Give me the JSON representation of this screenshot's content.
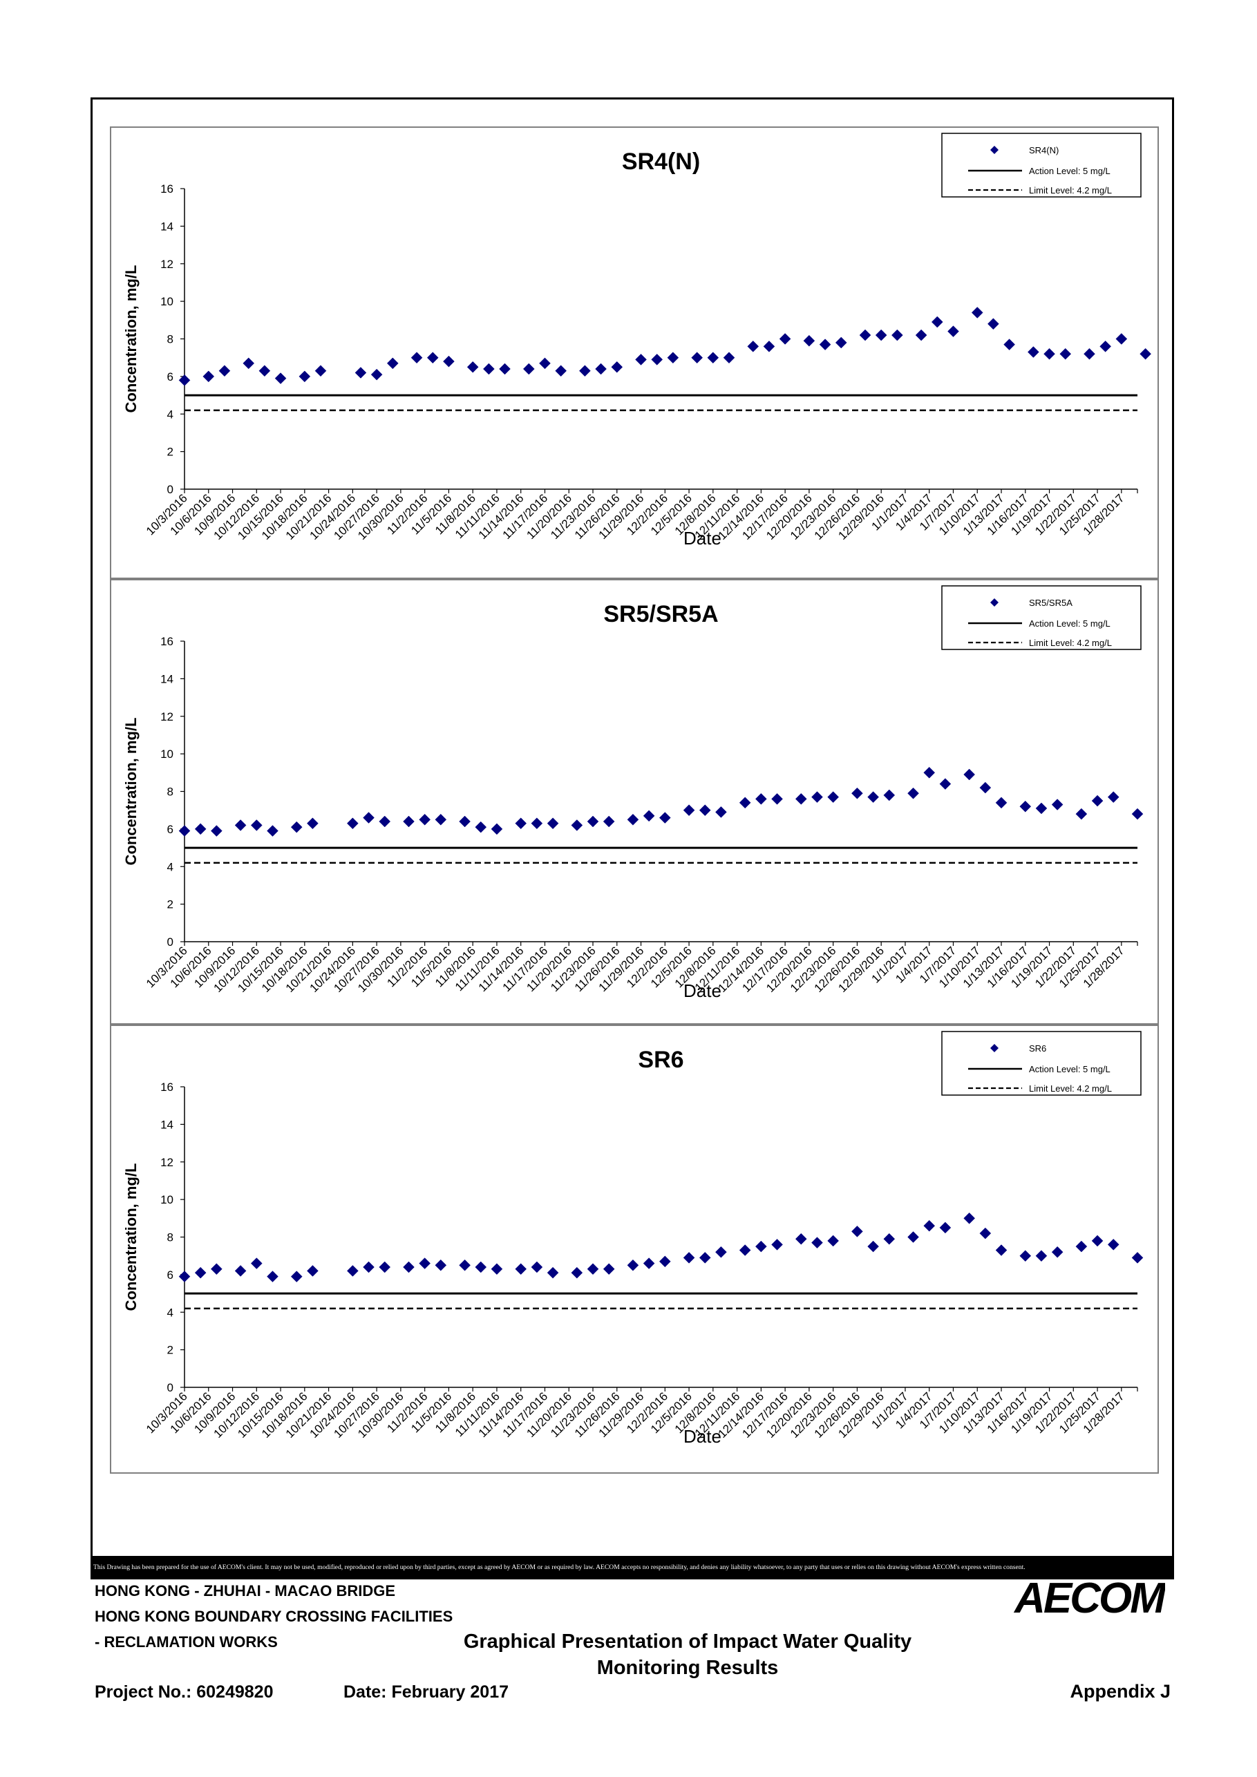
{
  "x_tick_labels": [
    "10/3/2016",
    "10/6/2016",
    "10/9/2016",
    "10/12/2016",
    "10/15/2016",
    "10/18/2016",
    "10/21/2016",
    "10/24/2016",
    "10/27/2016",
    "10/30/2016",
    "11/2/2016",
    "11/5/2016",
    "11/8/2016",
    "11/11/2016",
    "11/14/2016",
    "11/17/2016",
    "11/20/2016",
    "11/23/2016",
    "11/26/2016",
    "11/29/2016",
    "12/2/2016",
    "12/5/2016",
    "12/8/2016",
    "12/11/2016",
    "12/14/2016",
    "12/17/2016",
    "12/20/2016",
    "12/23/2016",
    "12/26/2016",
    "12/29/2016",
    "1/1/2017",
    "1/4/2017",
    "1/7/2017",
    "1/10/2017",
    "1/13/2017",
    "1/16/2017",
    "1/19/2017",
    "1/22/2017",
    "1/25/2017",
    "1/28/2017"
  ],
  "chart_data": [
    {
      "type": "scatter",
      "title": "SR4(N)",
      "xlabel": "Date",
      "ylabel": "Concentration, mg/L",
      "ylim": [
        0,
        16
      ],
      "y_ticks": [
        "0",
        "2",
        "4",
        "6",
        "8",
        "10",
        "12",
        "14",
        "16"
      ],
      "xlim": [
        "10/3/2016",
        "1/30/2017"
      ],
      "legend": {
        "position": "top-right",
        "entries": [
          "SR4(N)",
          "Action Level: 5 mg/L",
          "Limit Level: 4.2 mg/L"
        ]
      },
      "action_level": 5,
      "limit_level": 4.2,
      "series": [
        {
          "name": "SR4(N)",
          "color": "#00007f",
          "marker": "diamond",
          "points": [
            [
              "10/3/2016",
              5.8
            ],
            [
              "10/6/2016",
              6.0
            ],
            [
              "10/8/2016",
              6.3
            ],
            [
              "10/11/2016",
              6.7
            ],
            [
              "10/13/2016",
              6.3
            ],
            [
              "10/15/2016",
              5.9
            ],
            [
              "10/18/2016",
              6.0
            ],
            [
              "10/20/2016",
              6.3
            ],
            [
              "10/25/2016",
              6.2
            ],
            [
              "10/27/2016",
              6.1
            ],
            [
              "10/29/2016",
              6.7
            ],
            [
              "11/1/2016",
              7.0
            ],
            [
              "11/3/2016",
              7.0
            ],
            [
              "11/5/2016",
              6.8
            ],
            [
              "11/8/2016",
              6.5
            ],
            [
              "11/10/2016",
              6.4
            ],
            [
              "11/12/2016",
              6.4
            ],
            [
              "11/15/2016",
              6.4
            ],
            [
              "11/17/2016",
              6.7
            ],
            [
              "11/19/2016",
              6.3
            ],
            [
              "11/22/2016",
              6.3
            ],
            [
              "11/24/2016",
              6.4
            ],
            [
              "11/26/2016",
              6.5
            ],
            [
              "11/29/2016",
              6.9
            ],
            [
              "12/1/2016",
              6.9
            ],
            [
              "12/3/2016",
              7.0
            ],
            [
              "12/6/2016",
              7.0
            ],
            [
              "12/8/2016",
              7.0
            ],
            [
              "12/10/2016",
              7.0
            ],
            [
              "12/13/2016",
              7.6
            ],
            [
              "12/15/2016",
              7.6
            ],
            [
              "12/17/2016",
              8.0
            ],
            [
              "12/20/2016",
              7.9
            ],
            [
              "12/22/2016",
              7.7
            ],
            [
              "12/24/2016",
              7.8
            ],
            [
              "12/27/2016",
              8.2
            ],
            [
              "12/29/2016",
              8.2
            ],
            [
              "12/31/2016",
              8.2
            ],
            [
              "1/3/2017",
              8.2
            ],
            [
              "1/5/2017",
              8.9
            ],
            [
              "1/7/2017",
              8.4
            ],
            [
              "1/10/2017",
              9.4
            ],
            [
              "1/12/2017",
              8.8
            ],
            [
              "1/14/2017",
              7.7
            ],
            [
              "1/17/2017",
              7.3
            ],
            [
              "1/19/2017",
              7.2
            ],
            [
              "1/21/2017",
              7.2
            ],
            [
              "1/24/2017",
              7.2
            ],
            [
              "1/26/2017",
              7.6
            ],
            [
              "1/28/2017",
              8.0
            ],
            [
              "1/31/2017",
              7.2
            ]
          ]
        }
      ]
    },
    {
      "type": "scatter",
      "title": "SR5/SR5A",
      "xlabel": "Date",
      "ylabel": "Concentration, mg/L",
      "ylim": [
        0,
        16
      ],
      "y_ticks": [
        "0",
        "2",
        "4",
        "6",
        "8",
        "10",
        "12",
        "14",
        "16"
      ],
      "xlim": [
        "10/3/2016",
        "1/30/2017"
      ],
      "legend": {
        "position": "top-right",
        "entries": [
          "SR5/SR5A",
          "Action Level: 5 mg/L",
          "Limit Level: 4.2 mg/L"
        ]
      },
      "action_level": 5,
      "limit_level": 4.2,
      "series": [
        {
          "name": "SR5/SR5A",
          "color": "#00007f",
          "marker": "diamond",
          "points": [
            [
              "10/3/2016",
              5.9
            ],
            [
              "10/5/2016",
              6.0
            ],
            [
              "10/7/2016",
              5.9
            ],
            [
              "10/10/2016",
              6.2
            ],
            [
              "10/12/2016",
              6.2
            ],
            [
              "10/14/2016",
              5.9
            ],
            [
              "10/17/2016",
              6.1
            ],
            [
              "10/19/2016",
              6.3
            ],
            [
              "10/24/2016",
              6.3
            ],
            [
              "10/26/2016",
              6.6
            ],
            [
              "10/28/2016",
              6.4
            ],
            [
              "10/31/2016",
              6.4
            ],
            [
              "11/2/2016",
              6.5
            ],
            [
              "11/4/2016",
              6.5
            ],
            [
              "11/7/2016",
              6.4
            ],
            [
              "11/9/2016",
              6.1
            ],
            [
              "11/11/2016",
              6.0
            ],
            [
              "11/14/2016",
              6.3
            ],
            [
              "11/16/2016",
              6.3
            ],
            [
              "11/18/2016",
              6.3
            ],
            [
              "11/21/2016",
              6.2
            ],
            [
              "11/23/2016",
              6.4
            ],
            [
              "11/25/2016",
              6.4
            ],
            [
              "11/28/2016",
              6.5
            ],
            [
              "11/30/2016",
              6.7
            ],
            [
              "12/2/2016",
              6.6
            ],
            [
              "12/5/2016",
              7.0
            ],
            [
              "12/7/2016",
              7.0
            ],
            [
              "12/9/2016",
              6.9
            ],
            [
              "12/12/2016",
              7.4
            ],
            [
              "12/14/2016",
              7.6
            ],
            [
              "12/16/2016",
              7.6
            ],
            [
              "12/19/2016",
              7.6
            ],
            [
              "12/21/2016",
              7.7
            ],
            [
              "12/23/2016",
              7.7
            ],
            [
              "12/26/2016",
              7.9
            ],
            [
              "12/28/2016",
              7.7
            ],
            [
              "12/30/2016",
              7.8
            ],
            [
              "1/2/2017",
              7.9
            ],
            [
              "1/4/2017",
              9.0
            ],
            [
              "1/6/2017",
              8.4
            ],
            [
              "1/9/2017",
              8.9
            ],
            [
              "1/11/2017",
              8.2
            ],
            [
              "1/13/2017",
              7.4
            ],
            [
              "1/16/2017",
              7.2
            ],
            [
              "1/18/2017",
              7.1
            ],
            [
              "1/20/2017",
              7.3
            ],
            [
              "1/23/2017",
              6.8
            ],
            [
              "1/25/2017",
              7.5
            ],
            [
              "1/27/2017",
              7.7
            ],
            [
              "1/30/2017",
              6.8
            ]
          ]
        }
      ]
    },
    {
      "type": "scatter",
      "title": "SR6",
      "xlabel": "Date",
      "ylabel": "Concentration, mg/L",
      "ylim": [
        0,
        16
      ],
      "y_ticks": [
        "0",
        "2",
        "4",
        "6",
        "8",
        "10",
        "12",
        "14",
        "16"
      ],
      "xlim": [
        "10/3/2016",
        "1/30/2017"
      ],
      "legend": {
        "position": "top-right",
        "entries": [
          "SR6",
          "Action Level: 5 mg/L",
          "Limit Level: 4.2 mg/L"
        ]
      },
      "action_level": 5,
      "limit_level": 4.2,
      "series": [
        {
          "name": "SR6",
          "color": "#00007f",
          "marker": "diamond",
          "points": [
            [
              "10/3/2016",
              5.9
            ],
            [
              "10/5/2016",
              6.1
            ],
            [
              "10/7/2016",
              6.3
            ],
            [
              "10/10/2016",
              6.2
            ],
            [
              "10/12/2016",
              6.6
            ],
            [
              "10/14/2016",
              5.9
            ],
            [
              "10/17/2016",
              5.9
            ],
            [
              "10/19/2016",
              6.2
            ],
            [
              "10/24/2016",
              6.2
            ],
            [
              "10/26/2016",
              6.4
            ],
            [
              "10/28/2016",
              6.4
            ],
            [
              "10/31/2016",
              6.4
            ],
            [
              "11/2/2016",
              6.6
            ],
            [
              "11/4/2016",
              6.5
            ],
            [
              "11/7/2016",
              6.5
            ],
            [
              "11/9/2016",
              6.4
            ],
            [
              "11/11/2016",
              6.3
            ],
            [
              "11/14/2016",
              6.3
            ],
            [
              "11/16/2016",
              6.4
            ],
            [
              "11/18/2016",
              6.1
            ],
            [
              "11/21/2016",
              6.1
            ],
            [
              "11/23/2016",
              6.3
            ],
            [
              "11/25/2016",
              6.3
            ],
            [
              "11/28/2016",
              6.5
            ],
            [
              "11/30/2016",
              6.6
            ],
            [
              "12/2/2016",
              6.7
            ],
            [
              "12/5/2016",
              6.9
            ],
            [
              "12/7/2016",
              6.9
            ],
            [
              "12/9/2016",
              7.2
            ],
            [
              "12/12/2016",
              7.3
            ],
            [
              "12/14/2016",
              7.5
            ],
            [
              "12/16/2016",
              7.6
            ],
            [
              "12/19/2016",
              7.9
            ],
            [
              "12/21/2016",
              7.7
            ],
            [
              "12/23/2016",
              7.8
            ],
            [
              "12/26/2016",
              8.3
            ],
            [
              "12/28/2016",
              7.5
            ],
            [
              "12/30/2016",
              7.9
            ],
            [
              "1/2/2017",
              8.0
            ],
            [
              "1/4/2017",
              8.6
            ],
            [
              "1/6/2017",
              8.5
            ],
            [
              "1/9/2017",
              9.0
            ],
            [
              "1/11/2017",
              8.2
            ],
            [
              "1/13/2017",
              7.3
            ],
            [
              "1/16/2017",
              7.0
            ],
            [
              "1/18/2017",
              7.0
            ],
            [
              "1/20/2017",
              7.2
            ],
            [
              "1/23/2017",
              7.5
            ],
            [
              "1/25/2017",
              7.8
            ],
            [
              "1/27/2017",
              7.6
            ],
            [
              "1/30/2017",
              6.9
            ]
          ]
        }
      ]
    }
  ],
  "footer": {
    "disclaimer": "This Drawing has been prepared for the use of AECOM's client. It may not be used, modified, reproduced or relied upon by third parties, except as agreed by AECOM or as required by law. AECOM accepts no responsibility, and denies any liability whatsoever, to any party that uses or relies on this drawing without AECOM's express written consent.",
    "project_line1": "HONG KONG - ZHUHAI - MACAO BRIDGE",
    "project_line2": "HONG KONG BOUNDARY CROSSING FACILITIES",
    "project_line3": "- RECLAMATION WORKS",
    "title_line1": "Graphical Presentation of Impact Water Quality",
    "title_line2": "Monitoring Results",
    "project_no": "Project No.: 60249820",
    "date": "Date: February 2017",
    "appendix": "Appendix J",
    "logo_text": "AECOM"
  }
}
